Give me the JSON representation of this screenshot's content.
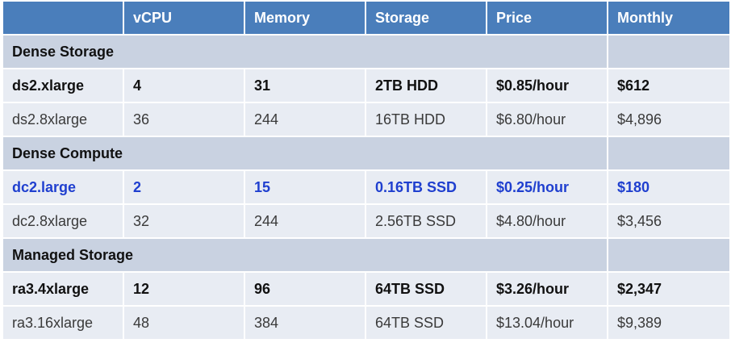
{
  "table": {
    "headers": [
      "",
      "vCPU",
      "Memory",
      "Storage",
      "Price",
      "Monthly"
    ],
    "groups": [
      {
        "name": "Dense Storage",
        "rows": [
          {
            "cells": [
              "ds2.xlarge",
              "4",
              "31",
              "2TB HDD",
              "$0.85/hour",
              "$612"
            ],
            "style": "bold"
          },
          {
            "cells": [
              "ds2.8xlarge",
              "36",
              "244",
              "16TB HDD",
              "$6.80/hour",
              "$4,896"
            ],
            "style": "normal"
          }
        ]
      },
      {
        "name": "Dense Compute",
        "rows": [
          {
            "cells": [
              "dc2.large",
              "2",
              "15",
              "0.16TB SSD",
              "$0.25/hour",
              "$180"
            ],
            "style": "highlight"
          },
          {
            "cells": [
              "dc2.8xlarge",
              "32",
              "244",
              "2.56TB SSD",
              "$4.80/hour",
              "$3,456"
            ],
            "style": "normal"
          }
        ]
      },
      {
        "name": "Managed Storage",
        "rows": [
          {
            "cells": [
              "ra3.4xlarge",
              "12",
              "96",
              "64TB SSD",
              "$3.26/hour",
              "$2,347"
            ],
            "style": "bold"
          },
          {
            "cells": [
              "ra3.16xlarge",
              "48",
              "384",
              "64TB SSD",
              "$13.04/hour",
              "$9,389"
            ],
            "style": "normal"
          }
        ]
      }
    ]
  },
  "colors": {
    "header_bg": "#4a7ebb",
    "row_dark_bg": "#c9d2e1",
    "row_light_bg": "#e8ecf3",
    "highlight_text": "#1f3fcf"
  }
}
